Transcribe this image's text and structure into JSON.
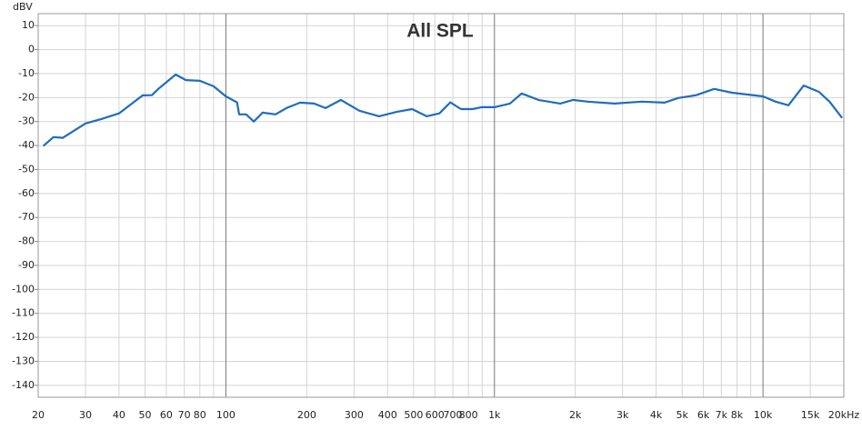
{
  "chart_data": {
    "type": "line",
    "title": "All SPL",
    "ylabel": "dBV",
    "xscale": "log",
    "grid": true,
    "xlim": [
      20,
      20000
    ],
    "ylim": [
      -145,
      15
    ],
    "yticks": [
      -140,
      -130,
      -120,
      -110,
      -100,
      -90,
      -80,
      -70,
      -60,
      -50,
      -40,
      -30,
      -20,
      -10,
      0,
      10
    ],
    "xticks": [
      20,
      30,
      40,
      50,
      60,
      70,
      80,
      100,
      200,
      300,
      400,
      500,
      600,
      700,
      800,
      {
        "value": 1000,
        "label": "1k"
      },
      {
        "value": 2000,
        "label": "2k"
      },
      {
        "value": 3000,
        "label": "3k"
      },
      {
        "value": 4000,
        "label": "4k"
      },
      {
        "value": 5000,
        "label": "5k"
      },
      {
        "value": 6000,
        "label": "6k"
      },
      {
        "value": 7000,
        "label": "7k"
      },
      {
        "value": 8000,
        "label": "8k"
      },
      {
        "value": 10000,
        "label": "10k"
      },
      {
        "value": 15000,
        "label": "15k"
      },
      {
        "value": 20000,
        "label": "20kHz"
      }
    ],
    "xminor": [
      90,
      900,
      9000
    ],
    "x": [
      20.9,
      22.8,
      24.7,
      30,
      34.5,
      40,
      49,
      53,
      56,
      65,
      71,
      80,
      90,
      100,
      110,
      112,
      119,
      127,
      137,
      153,
      168,
      189,
      213,
      235,
      268,
      314,
      372,
      434,
      494,
      559,
      624,
      685,
      751,
      828,
      896,
      1000,
      1142,
      1263,
      1458,
      1759,
      1960,
      2222,
      2800,
      3537,
      4295,
      4830,
      5637,
      6580,
      7680,
      10000,
      11140,
      12440,
      14180,
      16150,
      17700,
      19700
    ],
    "series": [
      {
        "name": "All SPL",
        "color": "#1f6cc0",
        "values": [
          -40.2,
          -36.5,
          -36.8,
          -30.8,
          -28.9,
          -26.6,
          -19.1,
          -19,
          -16.4,
          -10.4,
          -12.7,
          -13,
          -15.3,
          -19.5,
          -22,
          -27,
          -27,
          -30,
          -26.3,
          -27,
          -24.4,
          -22.1,
          -22.5,
          -24.4,
          -21,
          -25.5,
          -27.8,
          -25.9,
          -24.8,
          -27.8,
          -26.6,
          -22,
          -24.8,
          -24.8,
          -24,
          -24,
          -22.5,
          -18.3,
          -21,
          -22.5,
          -21,
          -21.7,
          -22.5,
          -21.7,
          -22.1,
          -20.2,
          -19,
          -16.4,
          -18,
          -19.5,
          -21.7,
          -23.2,
          -15,
          -17.6,
          -21.7,
          -28.5
        ]
      }
    ]
  }
}
